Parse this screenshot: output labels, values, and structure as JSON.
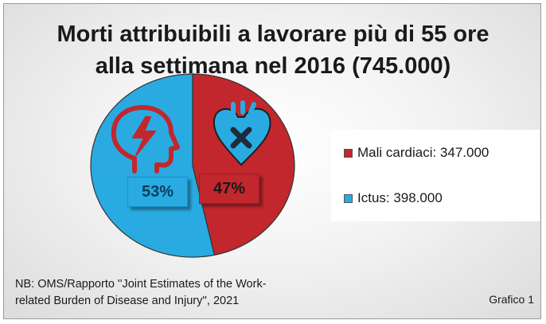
{
  "chart_data": {
    "type": "pie",
    "title_lines": [
      "Morti attribuibili a lavorare più di 55 ore",
      "alla settimana nel 2016 (745.000)"
    ],
    "slices": [
      {
        "name": "Mali cardiaci",
        "value": 347000,
        "label": "47%",
        "color": "#c1272d",
        "legend": "Mali cardiaci: 347.000",
        "icon": "heart-icon"
      },
      {
        "name": "Ictus",
        "value": 398000,
        "label": "53%",
        "color": "#29abe2",
        "legend": "Ictus: 398.000",
        "icon": "head-stroke-icon"
      }
    ],
    "legend_position": "right"
  },
  "note": {
    "line1": "NB: OMS/Rapporto ''Joint Estimates of the Work-",
    "line2": "related Burden of Disease and Injury'', 2021"
  },
  "figure_label": "Grafico 1"
}
